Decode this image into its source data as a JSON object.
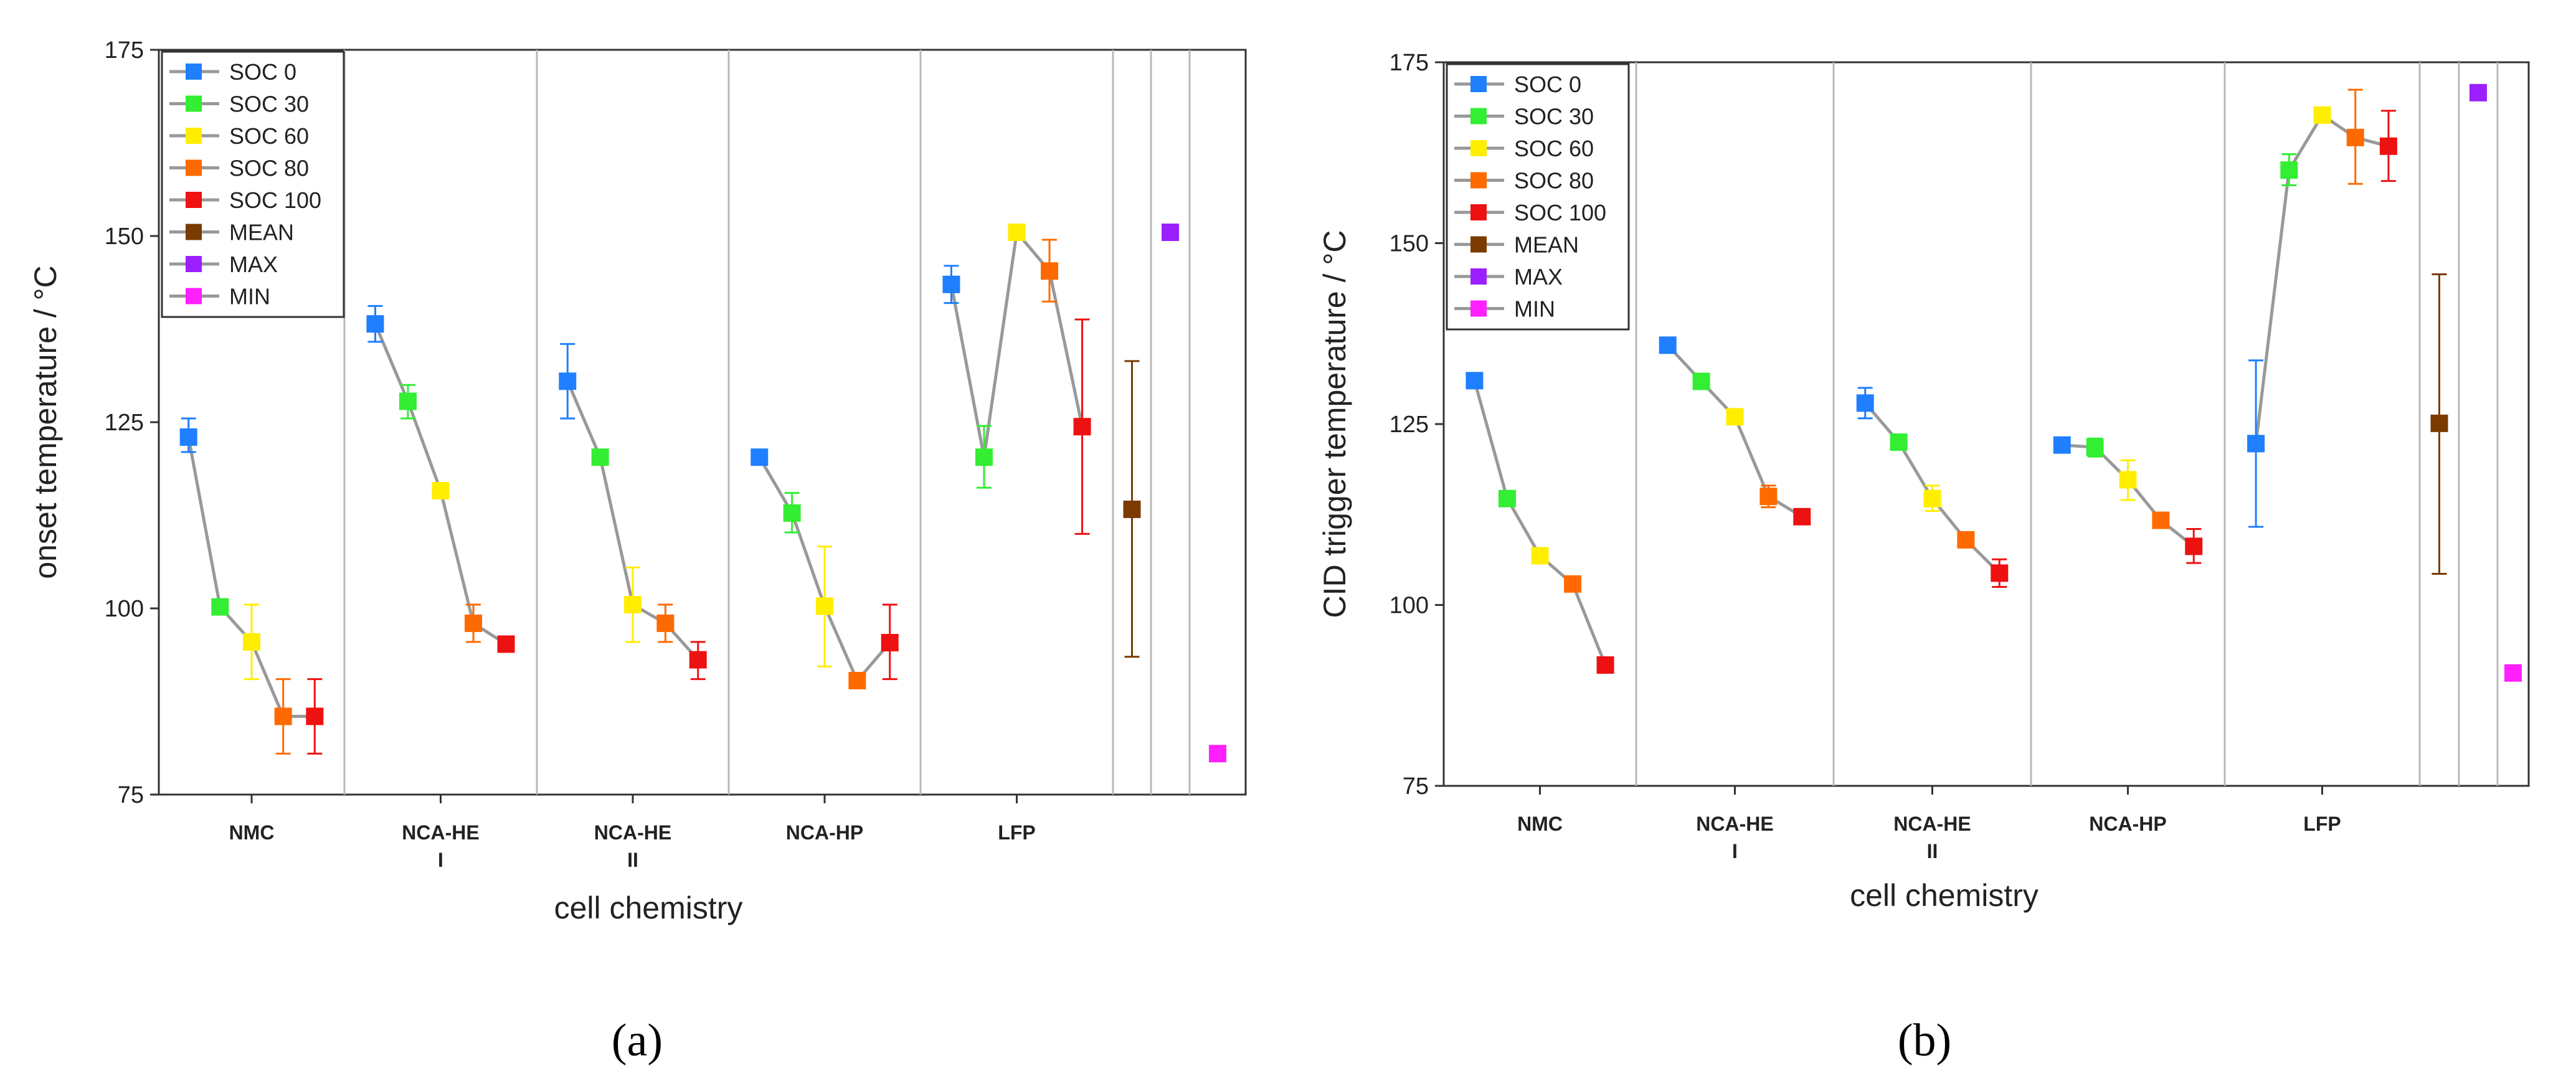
{
  "captions": [
    "(a)",
    "(b)"
  ],
  "chart_data": [
    {
      "type": "scatter",
      "title": "",
      "xlabel": "cell chemistry",
      "ylabel": "onset temperature / °C",
      "ylim": [
        75,
        175
      ],
      "yticks": [
        75,
        100,
        125,
        150,
        175
      ],
      "grid": false,
      "legend_position": "top-left",
      "categories": [
        [
          "NMC"
        ],
        [
          "NCA-HE",
          "I"
        ],
        [
          "NCA-HE",
          "II"
        ],
        [
          "NCA-HP"
        ],
        [
          "LFP"
        ]
      ],
      "legend": [
        {
          "name": "SOC 0",
          "color": "#1f7fff"
        },
        {
          "name": "SOC 30",
          "color": "#33ee33"
        },
        {
          "name": "SOC 60",
          "color": "#ffee00"
        },
        {
          "name": "SOC 80",
          "color": "#ff6a00"
        },
        {
          "name": "SOC 100",
          "color": "#ee1111"
        },
        {
          "name": "MEAN",
          "color": "#7a3a00"
        },
        {
          "name": "MAX",
          "color": "#9b1fff"
        },
        {
          "name": "MIN",
          "color": "#ff1fff"
        }
      ],
      "groups": [
        {
          "category": "NMC",
          "points": [
            {
              "soc": "SOC 0",
              "value": 123,
              "err": [
                121,
                125.5
              ]
            },
            {
              "soc": "SOC 30",
              "value": 100.2,
              "err": null
            },
            {
              "soc": "SOC 60",
              "value": 95.5,
              "err": [
                90.5,
                100.5
              ]
            },
            {
              "soc": "SOC 80",
              "value": 85.5,
              "err": [
                80.5,
                90.5
              ]
            },
            {
              "soc": "SOC 100",
              "value": 85.5,
              "err": [
                80.5,
                90.5
              ]
            }
          ]
        },
        {
          "category": "NCA-HE I",
          "points": [
            {
              "soc": "SOC 0",
              "value": 138.2,
              "err": [
                135.8,
                140.6
              ]
            },
            {
              "soc": "SOC 30",
              "value": 127.8,
              "err": [
                125.5,
                130
              ]
            },
            {
              "soc": "SOC 60",
              "value": 115.8,
              "err": null
            },
            {
              "soc": "SOC 80",
              "value": 98,
              "err": [
                95.5,
                100.5
              ]
            },
            {
              "soc": "SOC 100",
              "value": 95.2,
              "err": null
            }
          ]
        },
        {
          "category": "NCA-HE II",
          "points": [
            {
              "soc": "SOC 0",
              "value": 130.5,
              "err": [
                125.5,
                135.5
              ]
            },
            {
              "soc": "SOC 30",
              "value": 120.3,
              "err": null
            },
            {
              "soc": "SOC 60",
              "value": 100.5,
              "err": [
                95.5,
                105.5
              ]
            },
            {
              "soc": "SOC 80",
              "value": 98,
              "err": [
                95.5,
                100.5
              ]
            },
            {
              "soc": "SOC 100",
              "value": 93.1,
              "err": [
                90.5,
                95.5
              ]
            }
          ]
        },
        {
          "category": "NCA-HP",
          "points": [
            {
              "soc": "SOC 0",
              "value": 120.3,
              "err": null
            },
            {
              "soc": "SOC 30",
              "value": 112.8,
              "err": [
                110.2,
                115.5
              ]
            },
            {
              "soc": "SOC 60",
              "value": 100.3,
              "err": [
                92.2,
                108.3
              ]
            },
            {
              "soc": "SOC 80",
              "value": 90.3,
              "err": null
            },
            {
              "soc": "SOC 100",
              "value": 95.4,
              "err": [
                90.5,
                100.5
              ]
            }
          ]
        },
        {
          "category": "LFP",
          "points": [
            {
              "soc": "SOC 0",
              "value": 143.5,
              "err": [
                141,
                146
              ]
            },
            {
              "soc": "SOC 30",
              "value": 120.3,
              "err": [
                116.2,
                124.5
              ]
            },
            {
              "soc": "SOC 60",
              "value": 150.5,
              "err": null
            },
            {
              "soc": "SOC 80",
              "value": 145.3,
              "err": [
                141.2,
                149.5
              ]
            },
            {
              "soc": "SOC 100",
              "value": 124.4,
              "err": [
                110,
                138.8
              ]
            }
          ]
        }
      ],
      "summary": [
        {
          "name": "MEAN",
          "value": 113.3,
          "err": [
            93.5,
            133.2
          ]
        },
        {
          "name": "MAX",
          "value": 150.5,
          "err": null
        },
        {
          "name": "MIN",
          "value": 80.5,
          "err": null
        }
      ]
    },
    {
      "type": "scatter",
      "title": "",
      "xlabel": "cell chemistry",
      "ylabel": "CID trigger temperature / °C",
      "ylim": [
        75,
        175
      ],
      "yticks": [
        75,
        100,
        125,
        150,
        175
      ],
      "grid": false,
      "legend_position": "top-left",
      "categories": [
        [
          "NMC"
        ],
        [
          "NCA-HE",
          "I"
        ],
        [
          "NCA-HE",
          "II"
        ],
        [
          "NCA-HP"
        ],
        [
          "LFP"
        ]
      ],
      "legend": [
        {
          "name": "SOC 0",
          "color": "#1f7fff"
        },
        {
          "name": "SOC 30",
          "color": "#33ee33"
        },
        {
          "name": "SOC 60",
          "color": "#ffee00"
        },
        {
          "name": "SOC 80",
          "color": "#ff6a00"
        },
        {
          "name": "SOC 100",
          "color": "#ee1111"
        },
        {
          "name": "MEAN",
          "color": "#7a3a00"
        },
        {
          "name": "MAX",
          "color": "#9b1fff"
        },
        {
          "name": "MIN",
          "color": "#ff1fff"
        }
      ],
      "groups": [
        {
          "category": "NMC",
          "points": [
            {
              "soc": "SOC 0",
              "value": 131,
              "err": null
            },
            {
              "soc": "SOC 30",
              "value": 114.7,
              "err": null
            },
            {
              "soc": "SOC 60",
              "value": 106.8,
              "err": null
            },
            {
              "soc": "SOC 80",
              "value": 102.9,
              "err": null
            },
            {
              "soc": "SOC 100",
              "value": 91.7,
              "err": null
            }
          ]
        },
        {
          "category": "NCA-HE I",
          "points": [
            {
              "soc": "SOC 0",
              "value": 135.9,
              "err": null
            },
            {
              "soc": "SOC 30",
              "value": 130.9,
              "err": null
            },
            {
              "soc": "SOC 60",
              "value": 126,
              "err": null
            },
            {
              "soc": "SOC 80",
              "value": 115,
              "err": [
                113.5,
                116.5
              ]
            },
            {
              "soc": "SOC 100",
              "value": 112.2,
              "err": null
            }
          ]
        },
        {
          "category": "NCA-HE II",
          "points": [
            {
              "soc": "SOC 0",
              "value": 127.9,
              "err": [
                125.8,
                130
              ]
            },
            {
              "soc": "SOC 30",
              "value": 122.5,
              "err": [
                121.5,
                123.5
              ]
            },
            {
              "soc": "SOC 60",
              "value": 114.7,
              "err": [
                113,
                116.5
              ]
            },
            {
              "soc": "SOC 80",
              "value": 109,
              "err": null
            },
            {
              "soc": "SOC 100",
              "value": 104.4,
              "err": [
                102.5,
                106.3
              ]
            }
          ]
        },
        {
          "category": "NCA-HP",
          "points": [
            {
              "soc": "SOC 0",
              "value": 122.1,
              "err": null
            },
            {
              "soc": "SOC 30",
              "value": 121.8,
              "err": [
                120.5,
                123
              ]
            },
            {
              "soc": "SOC 60",
              "value": 117.3,
              "err": [
                114.5,
                120
              ]
            },
            {
              "soc": "SOC 80",
              "value": 111.7,
              "err": null
            },
            {
              "soc": "SOC 100",
              "value": 108.1,
              "err": [
                105.8,
                110.5
              ]
            }
          ]
        },
        {
          "category": "LFP",
          "points": [
            {
              "soc": "SOC 0",
              "value": 122.3,
              "err": [
                110.8,
                133.8
              ]
            },
            {
              "soc": "SOC 30",
              "value": 160.1,
              "err": [
                158,
                162.3
              ]
            },
            {
              "soc": "SOC 60",
              "value": 167.7,
              "err": null
            },
            {
              "soc": "SOC 80",
              "value": 164.6,
              "err": [
                158.2,
                171.2
              ]
            },
            {
              "soc": "SOC 100",
              "value": 163.4,
              "err": [
                158.6,
                168.3
              ]
            }
          ]
        }
      ],
      "summary": [
        {
          "name": "MEAN",
          "value": 125.1,
          "err": [
            104.3,
            145.7
          ]
        },
        {
          "name": "MAX",
          "value": 170.8,
          "err": null
        },
        {
          "name": "MIN",
          "value": 90.6,
          "err": null
        }
      ]
    }
  ]
}
